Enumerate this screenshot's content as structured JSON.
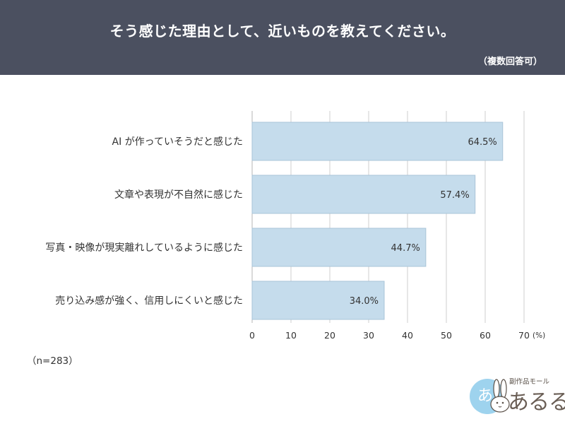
{
  "header": {
    "title": "そう感じた理由として、近いものを教えてください。",
    "note": "（複数回答可）"
  },
  "sample_note": "（n=283）",
  "logo": {
    "small_text": "副作品モール",
    "main_text": "あるる",
    "badge_text": "あ",
    "bg_color": "#9ed3ee"
  },
  "colors": {
    "header_bg": "#4b5060",
    "bar_fill": "#c5dcec",
    "bar_stroke": "#a9c4d8",
    "grid": "#cfcfcf"
  },
  "chart_data": {
    "type": "bar",
    "orientation": "horizontal",
    "categories": [
      "AI が作っていそうだと感じた",
      "文章や表現が不自然に感じた",
      "写真・映像が現実離れしているように感じた",
      "売り込み感が強く、信用しにくいと感じた"
    ],
    "values": [
      64.5,
      57.4,
      44.7,
      34.0
    ],
    "value_labels": [
      "64.5%",
      "57.4%",
      "44.7%",
      "34.0%"
    ],
    "xlim": [
      0,
      70
    ],
    "xticks": [
      0,
      10,
      20,
      30,
      40,
      50,
      60,
      70
    ],
    "unit": "(%)",
    "title": "",
    "xlabel": "",
    "ylabel": "",
    "grid": true,
    "legend": "none"
  }
}
